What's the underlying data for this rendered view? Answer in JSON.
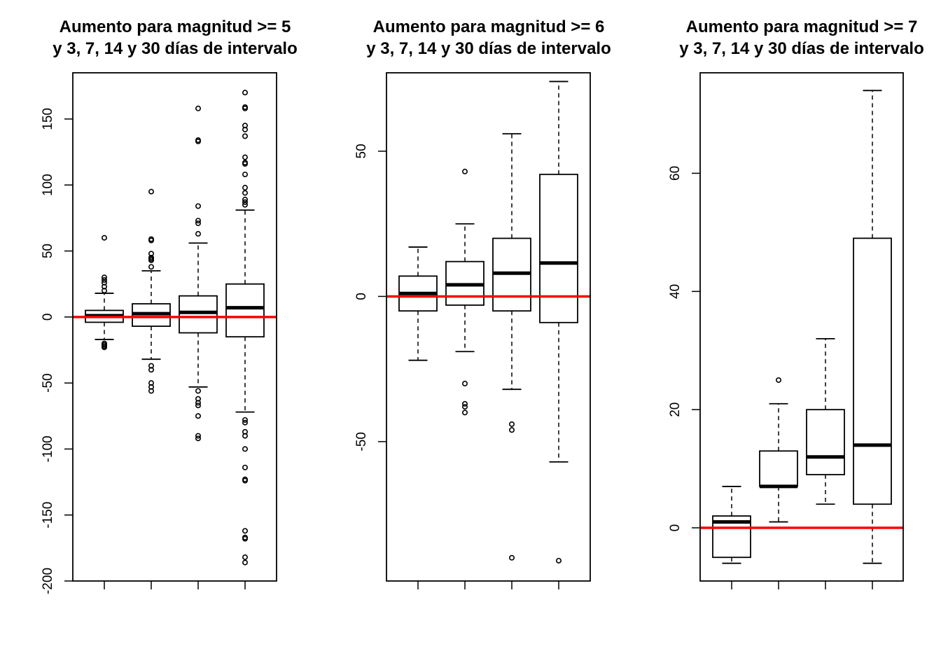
{
  "chart_data": [
    {
      "type": "box",
      "title_lines": [
        "Aumento para magnitud >= 5",
        "y 3, 7, 14 y 30 días de intervalo"
      ],
      "ylim": [
        -200,
        185
      ],
      "yticks": [
        150,
        100,
        50,
        0,
        -50,
        -100,
        -150,
        -200
      ],
      "ytick_labels": [
        "150",
        "100",
        "50",
        "0",
        "-50",
        "-100",
        "-150",
        "-200"
      ],
      "reference_line": 0,
      "reference_color": "#ff0000",
      "grid": false,
      "boxes": [
        {
          "whisker_low": -17,
          "q1": -4,
          "median": 1,
          "q3": 5,
          "whisker_high": 18,
          "outliers": [
            60,
            30,
            28,
            26,
            23,
            20,
            -20,
            -21,
            -22,
            -23
          ]
        },
        {
          "whisker_low": -32,
          "q1": -7,
          "median": 2.5,
          "q3": 10,
          "whisker_high": 35,
          "outliers": [
            95,
            59,
            58,
            48,
            45,
            44,
            43,
            38,
            -37,
            -40,
            -50,
            -53,
            -56
          ]
        },
        {
          "whisker_low": -53,
          "q1": -12,
          "median": 3.5,
          "q3": 16,
          "whisker_high": 56,
          "outliers": [
            158,
            134,
            133,
            84,
            73,
            71,
            63,
            -56,
            -62,
            -65,
            -67,
            -75,
            -90,
            -92
          ]
        },
        {
          "whisker_low": -72,
          "q1": -15,
          "median": 7,
          "q3": 25,
          "whisker_high": 81,
          "outliers": [
            170,
            159,
            158,
            145,
            142,
            137,
            121,
            117,
            116,
            108,
            98,
            94,
            89,
            87,
            85,
            -78,
            -80,
            -87,
            -90,
            -100,
            -114,
            -123,
            -124,
            -162,
            -167,
            -168,
            -182,
            -186
          ]
        }
      ]
    },
    {
      "type": "box",
      "title_lines": [
        "Aumento para magnitud >= 6",
        "y 3, 7, 14 y 30 días de intervalo"
      ],
      "ylim": [
        -98,
        77
      ],
      "yticks": [
        50,
        0,
        -50
      ],
      "ytick_labels": [
        "50",
        "0",
        "-50"
      ],
      "reference_line": 0,
      "reference_color": "#ff0000",
      "grid": false,
      "boxes": [
        {
          "whisker_low": -22,
          "q1": -5,
          "median": 1,
          "q3": 7,
          "whisker_high": 17,
          "outliers": []
        },
        {
          "whisker_low": -19,
          "q1": -3,
          "median": 4,
          "q3": 12,
          "whisker_high": 25,
          "outliers": [
            43,
            -30,
            -37,
            -38,
            -40
          ]
        },
        {
          "whisker_low": -32,
          "q1": -5,
          "median": 8,
          "q3": 20,
          "whisker_high": 56,
          "outliers": [
            -44,
            -46,
            -90
          ]
        },
        {
          "whisker_low": -57,
          "q1": -9,
          "median": 11.5,
          "q3": 42,
          "whisker_high": 74,
          "outliers": [
            -91
          ]
        }
      ]
    },
    {
      "type": "box",
      "title_lines": [
        "Aumento para magnitud >= 7",
        "y 3, 7, 14 y 30 días de intervalo"
      ],
      "ylim": [
        -9,
        77
      ],
      "yticks": [
        60,
        40,
        20,
        0
      ],
      "ytick_labels": [
        "60",
        "40",
        "20",
        "0"
      ],
      "reference_line": 0,
      "reference_color": "#ff0000",
      "grid": false,
      "boxes": [
        {
          "whisker_low": -6,
          "q1": -5,
          "median": 1,
          "q3": 2,
          "whisker_high": 7,
          "outliers": []
        },
        {
          "whisker_low": 1,
          "q1": 7,
          "median": 7,
          "q3": 13,
          "whisker_high": 21,
          "outliers": [
            25
          ]
        },
        {
          "whisker_low": 4,
          "q1": 9,
          "median": 12,
          "q3": 20,
          "whisker_high": 32,
          "outliers": []
        },
        {
          "whisker_low": -6,
          "q1": 4,
          "median": 14,
          "q3": 49,
          "whisker_high": 74,
          "outliers": []
        }
      ]
    }
  ]
}
